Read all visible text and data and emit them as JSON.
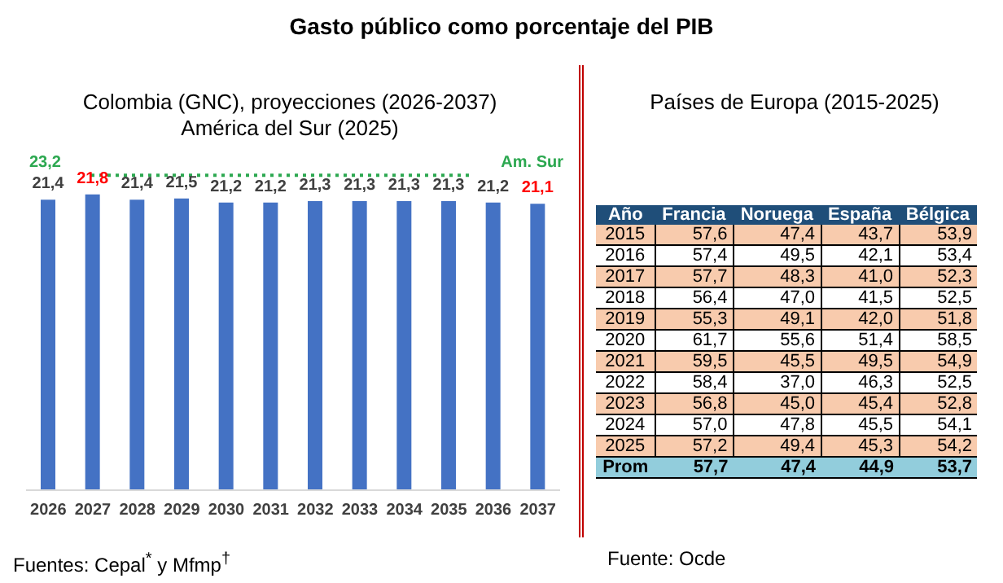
{
  "chart_data": [
    {
      "type": "bar",
      "title": "Gasto público como porcentaje del PIB",
      "subtitle": "Colombia (GNC), proyecciones (2026-2037)\nAmérica del Sur (2025)",
      "categories": [
        "2026",
        "2027",
        "2028",
        "2029",
        "2030",
        "2031",
        "2032",
        "2033",
        "2034",
        "2035",
        "2036",
        "2037"
      ],
      "values": [
        21.4,
        21.8,
        21.4,
        21.5,
        21.2,
        21.2,
        21.3,
        21.3,
        21.3,
        21.3,
        21.2,
        21.1
      ],
      "value_labels": [
        "21,4",
        "21,8",
        "21,4",
        "21,5",
        "21,2",
        "21,2",
        "21,3",
        "21,3",
        "21,3",
        "21,3",
        "21,2",
        "21,1"
      ],
      "color": "#4472c4",
      "ref_lines": [
        {
          "axis": "y",
          "value": 23.2,
          "label": "Am. Sur",
          "color": "#2ca850",
          "line_style": "dotted"
        }
      ],
      "annotations": [
        "23,2",
        "Fuentes: Cepal$^{*}$ y Mfmp$^{†}$"
      ]
    },
    {
      "type": "heatmap",
      "title": "Países de Europa (2015-2025)",
      "ylabel": "Año",
      "categories": [
        "Francia",
        "Noruega",
        "España",
        "Bélgica"
      ],
      "y_categories": [
        "2015",
        "2016",
        "2017",
        "2018",
        "2019",
        "2020",
        "2021",
        "2022",
        "2023",
        "2024",
        "2025",
        "Prom"
      ],
      "cells": [
        [
          57.6,
          47.4,
          43.7,
          53.9
        ],
        [
          57.4,
          49.5,
          42.1,
          53.4
        ],
        [
          57.7,
          48.3,
          41.0,
          52.3
        ],
        [
          56.4,
          47.0,
          41.5,
          52.5
        ],
        [
          55.3,
          49.1,
          42.0,
          51.8
        ],
        [
          61.7,
          55.6,
          51.4,
          58.5
        ],
        [
          59.5,
          45.5,
          49.5,
          54.9
        ],
        [
          58.4,
          37.0,
          46.3,
          52.5
        ],
        [
          56.8,
          45.0,
          45.4,
          52.8
        ],
        [
          57.0,
          47.8,
          45.5,
          54.1
        ],
        [
          57.2,
          49.4,
          45.3,
          54.2
        ],
        [
          57.7,
          47.4,
          44.9,
          53.7
        ]
      ],
      "cell_labels": [
        [
          "57,6",
          "47,4",
          "43,7",
          "53,9"
        ],
        [
          "57,4",
          "49,5",
          "42,1",
          "53,4"
        ],
        [
          "57,7",
          "48,3",
          "41,0",
          "52,3"
        ],
        [
          "56,4",
          "47,0",
          "41,5",
          "52,5"
        ],
        [
          "55,3",
          "49,1",
          "42,0",
          "51,8"
        ],
        [
          "61,7",
          "55,6",
          "51,4",
          "58,5"
        ],
        [
          "59,5",
          "45,5",
          "49,5",
          "54,9"
        ],
        [
          "58,4",
          "37,0",
          "46,3",
          "52,5"
        ],
        [
          "56,8",
          "45,0",
          "45,4",
          "52,8"
        ],
        [
          "57,0",
          "47,8",
          "45,5",
          "54,1"
        ],
        [
          "57,2",
          "49,4",
          "45,3",
          "54,2"
        ],
        [
          "57,7",
          "47,4",
          "44,9",
          "53,7"
        ]
      ],
      "annotations": [
        "Fuente: Ocde"
      ]
    }
  ]
}
